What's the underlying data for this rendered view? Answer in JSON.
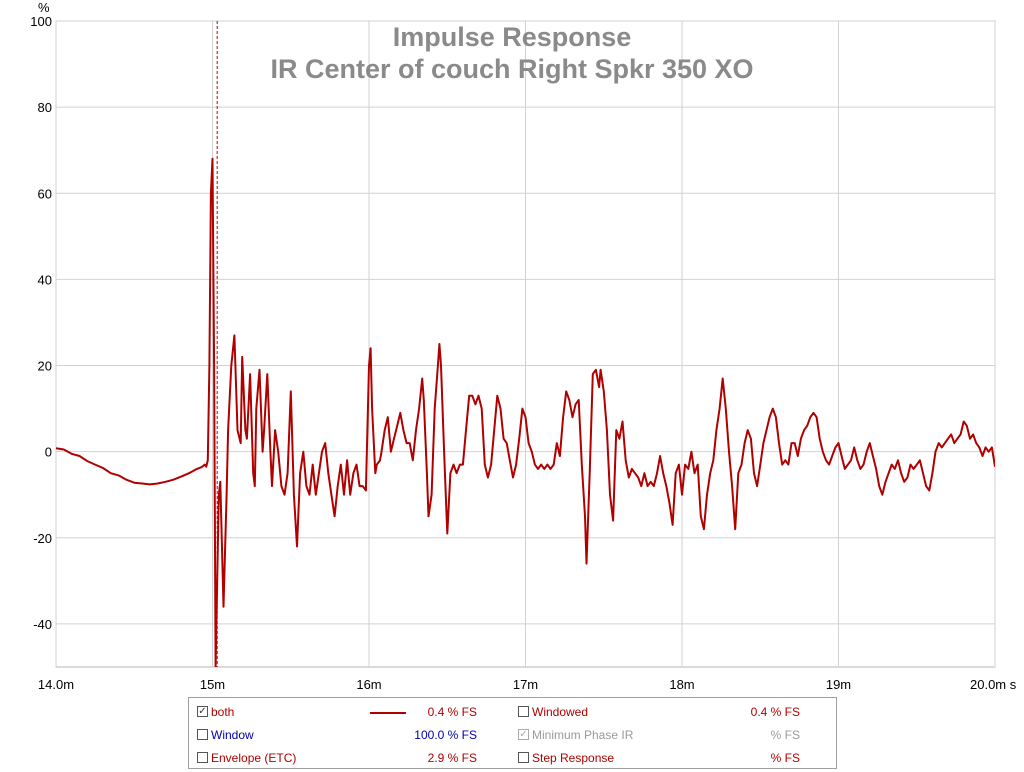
{
  "chart_data": {
    "type": "line",
    "title": "Impulse Response",
    "subtitle": "IR Center of couch Right Spkr 350 XO",
    "ylabel": "%",
    "xlabel": "",
    "xlim": [
      14.0,
      20.0
    ],
    "ylim": [
      -50,
      100
    ],
    "x_unit": "ms",
    "x_ticks": [
      {
        "value": 14.0,
        "label": "14.0m"
      },
      {
        "value": 15.0,
        "label": "15m"
      },
      {
        "value": 16.0,
        "label": "16m"
      },
      {
        "value": 17.0,
        "label": "17m"
      },
      {
        "value": 18.0,
        "label": "18m"
      },
      {
        "value": 19.0,
        "label": "19m"
      },
      {
        "value": 20.0,
        "label": "20.0m s"
      }
    ],
    "y_ticks": [
      {
        "value": 100,
        "label": "100"
      },
      {
        "value": 80,
        "label": "80"
      },
      {
        "value": 60,
        "label": "60"
      },
      {
        "value": 40,
        "label": "40"
      },
      {
        "value": 20,
        "label": "20"
      },
      {
        "value": 0,
        "label": "0"
      },
      {
        "value": -20,
        "label": "-20"
      },
      {
        "value": -40,
        "label": "-40"
      }
    ],
    "grid": true,
    "cursor_x": 15.03,
    "series": [
      {
        "name": "both",
        "color": "#b00000",
        "points": [
          [
            14.0,
            0.8
          ],
          [
            14.05,
            0.5
          ],
          [
            14.1,
            -0.5
          ],
          [
            14.15,
            -1
          ],
          [
            14.2,
            -2.2
          ],
          [
            14.25,
            -3
          ],
          [
            14.3,
            -3.8
          ],
          [
            14.35,
            -5
          ],
          [
            14.4,
            -5.5
          ],
          [
            14.45,
            -6.5
          ],
          [
            14.5,
            -7.2
          ],
          [
            14.55,
            -7.4
          ],
          [
            14.6,
            -7.6
          ],
          [
            14.65,
            -7.4
          ],
          [
            14.7,
            -7
          ],
          [
            14.75,
            -6.5
          ],
          [
            14.8,
            -5.8
          ],
          [
            14.85,
            -5
          ],
          [
            14.9,
            -4
          ],
          [
            14.93,
            -3.6
          ],
          [
            14.95,
            -3
          ],
          [
            14.96,
            -3.5
          ],
          [
            14.97,
            -2
          ],
          [
            14.98,
            20
          ],
          [
            14.99,
            60
          ],
          [
            15.0,
            68
          ],
          [
            15.01,
            20
          ],
          [
            15.02,
            -50
          ],
          [
            15.03,
            -30
          ],
          [
            15.04,
            -10
          ],
          [
            15.05,
            -7
          ],
          [
            15.07,
            -36
          ],
          [
            15.09,
            -10
          ],
          [
            15.1,
            5
          ],
          [
            15.12,
            20
          ],
          [
            15.14,
            27
          ],
          [
            15.16,
            5
          ],
          [
            15.18,
            2
          ],
          [
            15.19,
            22
          ],
          [
            15.21,
            5
          ],
          [
            15.22,
            3
          ],
          [
            15.24,
            18
          ],
          [
            15.26,
            -5
          ],
          [
            15.27,
            -8
          ],
          [
            15.28,
            10
          ],
          [
            15.3,
            19
          ],
          [
            15.32,
            0
          ],
          [
            15.33,
            5
          ],
          [
            15.35,
            18
          ],
          [
            15.37,
            0
          ],
          [
            15.38,
            -8
          ],
          [
            15.4,
            5
          ],
          [
            15.42,
            0
          ],
          [
            15.44,
            -8
          ],
          [
            15.46,
            -10
          ],
          [
            15.48,
            -5
          ],
          [
            15.5,
            14
          ],
          [
            15.52,
            -10
          ],
          [
            15.54,
            -22
          ],
          [
            15.56,
            -5
          ],
          [
            15.58,
            0
          ],
          [
            15.6,
            -8
          ],
          [
            15.62,
            -10
          ],
          [
            15.64,
            -3
          ],
          [
            15.66,
            -10
          ],
          [
            15.68,
            -5
          ],
          [
            15.7,
            0
          ],
          [
            15.72,
            2
          ],
          [
            15.74,
            -5
          ],
          [
            15.76,
            -10
          ],
          [
            15.78,
            -15
          ],
          [
            15.8,
            -8
          ],
          [
            15.82,
            -3
          ],
          [
            15.84,
            -10
          ],
          [
            15.86,
            -2
          ],
          [
            15.88,
            -10
          ],
          [
            15.9,
            -5
          ],
          [
            15.92,
            -3
          ],
          [
            15.94,
            -8
          ],
          [
            15.96,
            -8
          ],
          [
            15.98,
            -9
          ],
          [
            16.0,
            20
          ],
          [
            16.01,
            24
          ],
          [
            16.02,
            10
          ],
          [
            16.04,
            -5
          ],
          [
            16.05,
            -3
          ],
          [
            16.07,
            -2
          ],
          [
            16.08,
            0
          ],
          [
            16.1,
            5
          ],
          [
            16.12,
            8
          ],
          [
            16.14,
            0
          ],
          [
            16.16,
            3
          ],
          [
            16.18,
            6
          ],
          [
            16.2,
            9
          ],
          [
            16.22,
            5
          ],
          [
            16.24,
            2
          ],
          [
            16.26,
            2
          ],
          [
            16.28,
            -2
          ],
          [
            16.3,
            5
          ],
          [
            16.32,
            10
          ],
          [
            16.34,
            17
          ],
          [
            16.35,
            12
          ],
          [
            16.37,
            -5
          ],
          [
            16.38,
            -15
          ],
          [
            16.4,
            -10
          ],
          [
            16.42,
            10
          ],
          [
            16.44,
            20
          ],
          [
            16.45,
            25
          ],
          [
            16.46,
            20
          ],
          [
            16.48,
            0
          ],
          [
            16.5,
            -19
          ],
          [
            16.52,
            -5
          ],
          [
            16.54,
            -3
          ],
          [
            16.56,
            -5
          ],
          [
            16.58,
            -3
          ],
          [
            16.6,
            -3
          ],
          [
            16.62,
            5
          ],
          [
            16.64,
            13
          ],
          [
            16.66,
            13
          ],
          [
            16.68,
            11
          ],
          [
            16.7,
            13
          ],
          [
            16.72,
            10
          ],
          [
            16.74,
            -3
          ],
          [
            16.76,
            -6
          ],
          [
            16.78,
            -3
          ],
          [
            16.8,
            5
          ],
          [
            16.82,
            13
          ],
          [
            16.84,
            10
          ],
          [
            16.86,
            3
          ],
          [
            16.88,
            2
          ],
          [
            16.9,
            -2
          ],
          [
            16.92,
            -6
          ],
          [
            16.94,
            -3
          ],
          [
            16.96,
            3
          ],
          [
            16.98,
            10
          ],
          [
            17.0,
            8
          ],
          [
            17.02,
            2
          ],
          [
            17.04,
            0
          ],
          [
            17.06,
            -3
          ],
          [
            17.08,
            -4
          ],
          [
            17.1,
            -3
          ],
          [
            17.12,
            -4
          ],
          [
            17.14,
            -3
          ],
          [
            17.16,
            -4
          ],
          [
            17.18,
            -3
          ],
          [
            17.2,
            2
          ],
          [
            17.22,
            -1
          ],
          [
            17.24,
            8
          ],
          [
            17.26,
            14
          ],
          [
            17.28,
            12
          ],
          [
            17.3,
            8
          ],
          [
            17.32,
            11
          ],
          [
            17.34,
            12
          ],
          [
            17.36,
            -3
          ],
          [
            17.38,
            -15
          ],
          [
            17.39,
            -26
          ],
          [
            17.41,
            -5
          ],
          [
            17.43,
            18
          ],
          [
            17.45,
            19
          ],
          [
            17.47,
            15
          ],
          [
            17.48,
            19
          ],
          [
            17.5,
            14
          ],
          [
            17.52,
            5
          ],
          [
            17.54,
            -10
          ],
          [
            17.56,
            -16
          ],
          [
            17.58,
            5
          ],
          [
            17.6,
            3
          ],
          [
            17.62,
            7
          ],
          [
            17.64,
            -2
          ],
          [
            17.66,
            -6
          ],
          [
            17.68,
            -4
          ],
          [
            17.7,
            -5
          ],
          [
            17.72,
            -6
          ],
          [
            17.74,
            -8
          ],
          [
            17.76,
            -5
          ],
          [
            17.78,
            -8
          ],
          [
            17.8,
            -7
          ],
          [
            17.82,
            -8
          ],
          [
            17.84,
            -5
          ],
          [
            17.86,
            -1
          ],
          [
            17.88,
            -5
          ],
          [
            17.9,
            -8
          ],
          [
            17.92,
            -12
          ],
          [
            17.94,
            -17
          ],
          [
            17.96,
            -5
          ],
          [
            17.98,
            -3
          ],
          [
            18.0,
            -10
          ],
          [
            18.02,
            -3
          ],
          [
            18.04,
            -4
          ],
          [
            18.06,
            0
          ],
          [
            18.08,
            -5
          ],
          [
            18.1,
            -3
          ],
          [
            18.12,
            -15
          ],
          [
            18.14,
            -18
          ],
          [
            18.16,
            -10
          ],
          [
            18.18,
            -5
          ],
          [
            18.2,
            -2
          ],
          [
            18.22,
            5
          ],
          [
            18.24,
            10
          ],
          [
            18.26,
            17
          ],
          [
            18.28,
            10
          ],
          [
            18.3,
            0
          ],
          [
            18.32,
            -8
          ],
          [
            18.34,
            -18
          ],
          [
            18.36,
            -5
          ],
          [
            18.38,
            -3
          ],
          [
            18.4,
            2
          ],
          [
            18.42,
            5
          ],
          [
            18.44,
            3
          ],
          [
            18.46,
            -5
          ],
          [
            18.48,
            -8
          ],
          [
            18.5,
            -3
          ],
          [
            18.52,
            2
          ],
          [
            18.54,
            5
          ],
          [
            18.56,
            8
          ],
          [
            18.58,
            10
          ],
          [
            18.6,
            8
          ],
          [
            18.62,
            2
          ],
          [
            18.64,
            -3
          ],
          [
            18.66,
            -2
          ],
          [
            18.68,
            -3
          ],
          [
            18.7,
            2
          ],
          [
            18.72,
            2
          ],
          [
            18.74,
            -1
          ],
          [
            18.76,
            3
          ],
          [
            18.78,
            5
          ],
          [
            18.8,
            6
          ],
          [
            18.82,
            8
          ],
          [
            18.84,
            9
          ],
          [
            18.86,
            8
          ],
          [
            18.88,
            3
          ],
          [
            18.9,
            0
          ],
          [
            18.92,
            -2
          ],
          [
            18.94,
            -3
          ],
          [
            18.96,
            -1
          ],
          [
            18.98,
            1
          ],
          [
            19.0,
            2
          ],
          [
            19.02,
            -1
          ],
          [
            19.04,
            -4
          ],
          [
            19.06,
            -3
          ],
          [
            19.08,
            -2
          ],
          [
            19.1,
            1
          ],
          [
            19.12,
            -2
          ],
          [
            19.14,
            -4
          ],
          [
            19.16,
            -3
          ],
          [
            19.18,
            0
          ],
          [
            19.2,
            2
          ],
          [
            19.22,
            -1
          ],
          [
            19.24,
            -4
          ],
          [
            19.26,
            -8
          ],
          [
            19.28,
            -10
          ],
          [
            19.3,
            -7
          ],
          [
            19.32,
            -5
          ],
          [
            19.34,
            -3
          ],
          [
            19.36,
            -4
          ],
          [
            19.38,
            -2
          ],
          [
            19.4,
            -5
          ],
          [
            19.42,
            -7
          ],
          [
            19.44,
            -6
          ],
          [
            19.46,
            -3
          ],
          [
            19.48,
            -4
          ],
          [
            19.5,
            -3
          ],
          [
            19.52,
            -2
          ],
          [
            19.54,
            -5
          ],
          [
            19.56,
            -8
          ],
          [
            19.58,
            -9
          ],
          [
            19.6,
            -5
          ],
          [
            19.62,
            0
          ],
          [
            19.64,
            2
          ],
          [
            19.66,
            1
          ],
          [
            19.68,
            2
          ],
          [
            19.7,
            3
          ],
          [
            19.72,
            4
          ],
          [
            19.74,
            2
          ],
          [
            19.76,
            3
          ],
          [
            19.78,
            4
          ],
          [
            19.8,
            7
          ],
          [
            19.82,
            6
          ],
          [
            19.84,
            3
          ],
          [
            19.86,
            4
          ],
          [
            19.88,
            2
          ],
          [
            19.9,
            1
          ],
          [
            19.92,
            -1
          ],
          [
            19.94,
            1
          ],
          [
            19.96,
            0
          ],
          [
            19.98,
            1
          ],
          [
            20.0,
            -3.5
          ]
        ]
      }
    ]
  },
  "legend": {
    "rows": [
      {
        "left": {
          "checked": "✓",
          "label": "both",
          "color": "#b00000",
          "value": "0.4 % FS",
          "value_color": "#b00000",
          "swatch": true
        },
        "right": {
          "checked": "",
          "label": "Windowed",
          "color": "#b00000",
          "value": "0.4 % FS",
          "value_color": "#b00000",
          "disabled": false
        }
      },
      {
        "left": {
          "checked": "",
          "label": "Window",
          "color": "#0000b0",
          "value": "100.0 % FS",
          "value_color": "#0000b0",
          "swatch": false
        },
        "right": {
          "checked": "✓",
          "label": "Minimum Phase IR",
          "color": "#9a9a9a",
          "value": "% FS",
          "value_color": "#9a9a9a",
          "disabled": true
        }
      },
      {
        "left": {
          "checked": "",
          "label": "Envelope (ETC)",
          "color": "#b00000",
          "value": "2.9 % FS",
          "value_color": "#b00000",
          "swatch": false
        },
        "right": {
          "checked": "",
          "label": "Step Response",
          "color": "#b00000",
          "value": "% FS",
          "value_color": "#b00000",
          "disabled": false
        }
      }
    ]
  }
}
